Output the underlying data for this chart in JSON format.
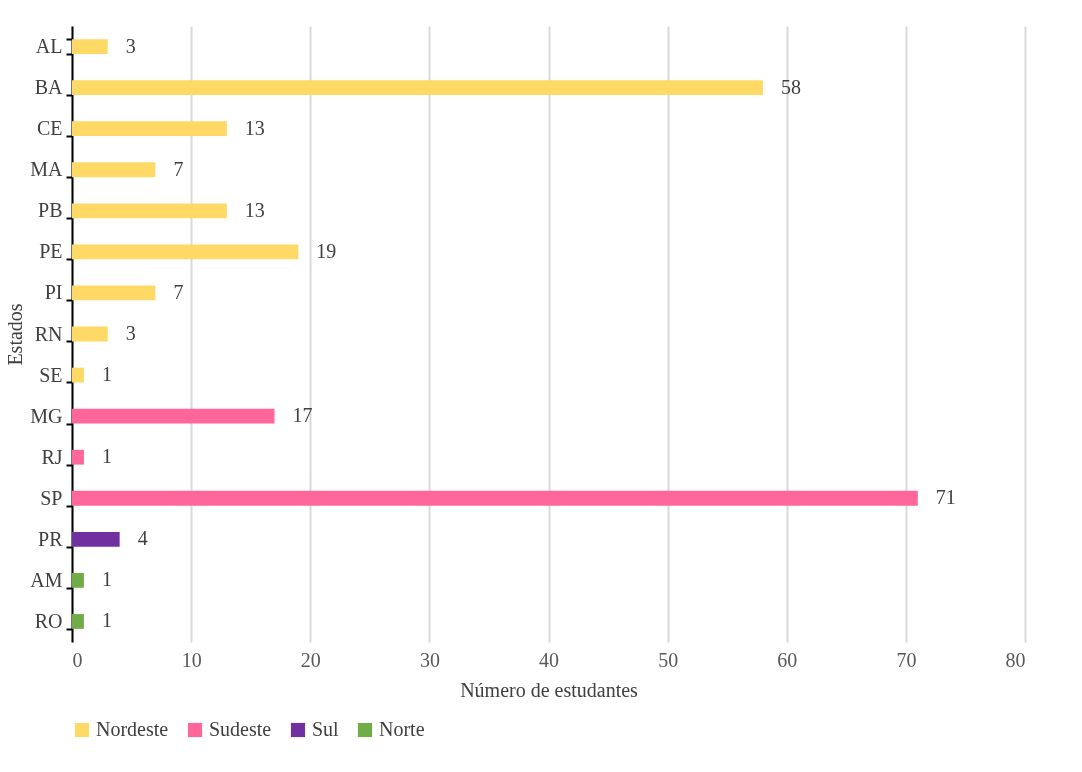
{
  "chart_data": {
    "type": "bar",
    "orientation": "horizontal",
    "xlabel": "Número de estudantes",
    "ylabel": "Estados",
    "categories": [
      "AL",
      "BA",
      "CE",
      "MA",
      "PB",
      "PE",
      "PI",
      "RN",
      "SE",
      "MG",
      "RJ",
      "SP",
      "PR",
      "AM",
      "RO"
    ],
    "series": [
      {
        "name": "Nordeste",
        "color": "#ffd966",
        "values": [
          3,
          58,
          13,
          7,
          13,
          19,
          7,
          3,
          1,
          null,
          null,
          null,
          null,
          null,
          null
        ]
      },
      {
        "name": "Sudeste",
        "color": "#ff6699",
        "values": [
          null,
          null,
          null,
          null,
          null,
          null,
          null,
          null,
          null,
          17,
          1,
          71,
          null,
          null,
          null
        ]
      },
      {
        "name": "Sul",
        "color": "#7030a0",
        "values": [
          null,
          null,
          null,
          null,
          null,
          null,
          null,
          null,
          null,
          null,
          null,
          null,
          4,
          null,
          null
        ]
      },
      {
        "name": "Norte",
        "color": "#70ad47",
        "values": [
          null,
          null,
          null,
          null,
          null,
          null,
          null,
          null,
          null,
          null,
          null,
          null,
          null,
          1,
          1
        ]
      }
    ],
    "xlim": [
      0,
      80
    ],
    "xticks": [
      0,
      10,
      20,
      30,
      40,
      50,
      60,
      70,
      80
    ],
    "grid": "x",
    "legend": "bottom",
    "data_labels": true
  }
}
